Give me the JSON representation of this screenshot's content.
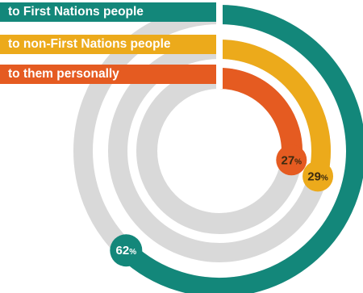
{
  "chart_data": {
    "type": "radial-bar",
    "max": 100,
    "series": [
      {
        "name": "to First Nations people",
        "value": 62,
        "label_num": "62",
        "label_unit": "%",
        "color": "#13877a"
      },
      {
        "name": "to non-First Nations people",
        "value": 29,
        "label_num": "29",
        "label_unit": "%",
        "color": "#ecaa1b"
      },
      {
        "name": "to them personally",
        "value": 27,
        "label_num": "27",
        "label_unit": "%",
        "color": "#e55b21"
      }
    ],
    "track_color": "#d9d9d9"
  }
}
